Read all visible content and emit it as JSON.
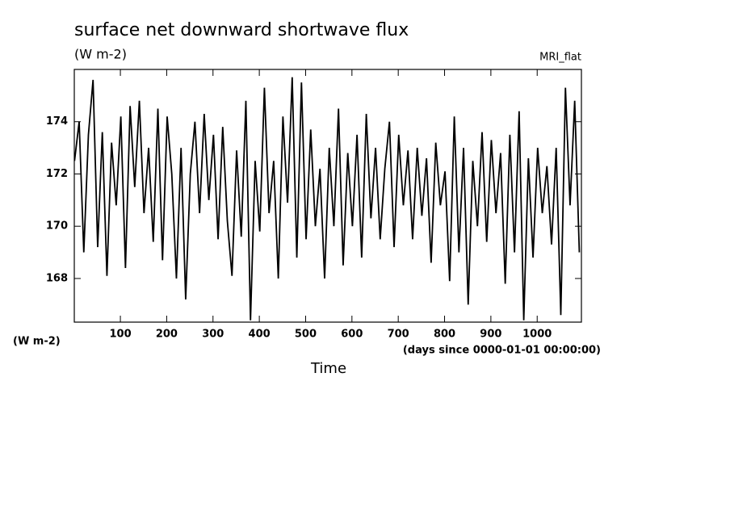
{
  "chart_data": {
    "type": "line",
    "title": "surface net downward shortwave flux",
    "subtitle": "(W m-2)",
    "annotation": "MRI_flat",
    "ylabel": "(W m-2)",
    "xlabel": "Time",
    "xunits": "(days since 0000-01-01 00:00:00)",
    "color": "#000000",
    "xlim": [
      0.5,
      1095.5
    ],
    "ylim": [
      166.33,
      176.0
    ],
    "xticks": [
      100,
      200,
      300,
      400,
      500,
      600,
      700,
      800,
      900,
      1000
    ],
    "yticks": [
      168,
      170,
      172,
      174
    ],
    "x": [
      1,
      11,
      21,
      31,
      41,
      51,
      61,
      71,
      81,
      91,
      101,
      111,
      121,
      131,
      141,
      151,
      161,
      171,
      181,
      191,
      201,
      211,
      221,
      231,
      241,
      251,
      261,
      271,
      281,
      291,
      301,
      311,
      321,
      331,
      341,
      351,
      361,
      371,
      381,
      391,
      401,
      411,
      421,
      431,
      441,
      451,
      461,
      471,
      481,
      491,
      501,
      511,
      521,
      531,
      541,
      551,
      561,
      571,
      581,
      591,
      601,
      611,
      621,
      631,
      641,
      651,
      661,
      671,
      681,
      691,
      701,
      711,
      721,
      731,
      741,
      751,
      761,
      771,
      781,
      791,
      801,
      811,
      821,
      831,
      841,
      851,
      861,
      871,
      881,
      891,
      901,
      911,
      921,
      931,
      941,
      951,
      961,
      971,
      981,
      991,
      1001,
      1011,
      1021,
      1031,
      1041,
      1051,
      1061,
      1071,
      1081,
      1091
    ],
    "values": [
      172.5,
      174.0,
      169.0,
      173.5,
      175.6,
      169.2,
      173.6,
      168.1,
      173.2,
      170.8,
      174.2,
      168.4,
      174.6,
      171.5,
      174.8,
      170.5,
      173.0,
      169.4,
      174.5,
      168.7,
      174.2,
      172.0,
      168.0,
      173.0,
      167.2,
      172.0,
      174.0,
      170.5,
      174.3,
      171.0,
      173.5,
      169.5,
      173.8,
      170.2,
      168.1,
      172.9,
      169.6,
      174.8,
      166.4,
      172.5,
      169.8,
      175.3,
      170.5,
      172.5,
      168.0,
      174.2,
      170.9,
      175.7,
      168.8,
      175.5,
      169.5,
      173.7,
      170.0,
      172.2,
      168.0,
      173.0,
      170.0,
      174.5,
      168.5,
      172.8,
      170.0,
      173.5,
      168.8,
      174.3,
      170.3,
      173.0,
      169.5,
      172.2,
      174.0,
      169.2,
      173.5,
      170.8,
      172.9,
      169.5,
      173.0,
      170.4,
      172.6,
      168.6,
      173.2,
      170.8,
      172.1,
      167.9,
      174.2,
      169.0,
      173.0,
      167.0,
      172.5,
      170.0,
      173.6,
      169.4,
      173.3,
      170.5,
      172.8,
      167.8,
      173.5,
      169.0,
      174.4,
      166.4,
      172.6,
      168.8,
      173.0,
      170.5,
      172.3,
      169.3,
      173.0,
      166.6,
      175.3,
      170.8,
      174.8,
      169.0
    ]
  }
}
